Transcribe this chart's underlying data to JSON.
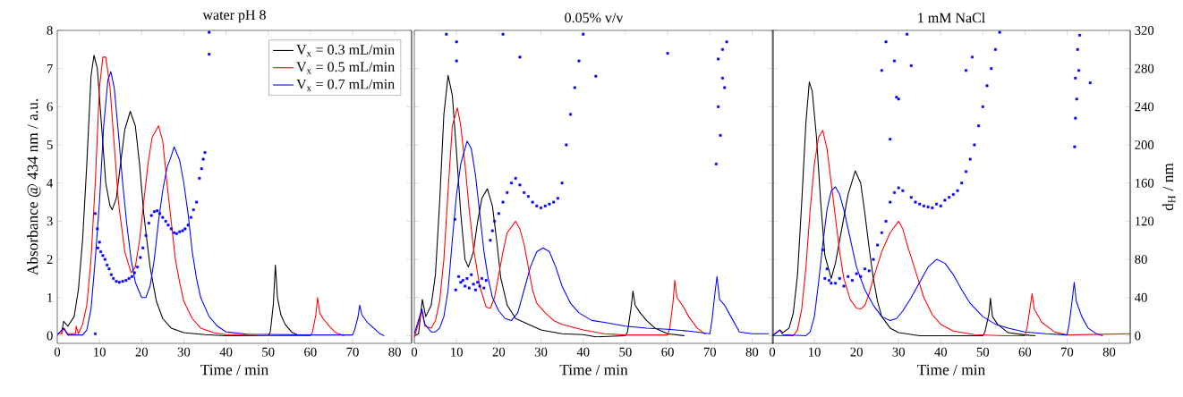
{
  "chart_data": [
    {
      "type": "line",
      "title": "water pH 8",
      "xlabel": "Time / min",
      "ylabel": "Absorbance @ 434 nm / a.u.",
      "xlim": [
        0,
        84
      ],
      "ylim": [
        -0.2,
        8
      ],
      "y2lim": [
        -8,
        320
      ],
      "xticks": [
        0,
        10,
        20,
        30,
        40,
        50,
        60,
        70,
        80
      ],
      "yticks": [
        0,
        1,
        2,
        3,
        4,
        5,
        6,
        7,
        8
      ],
      "legend": "top right",
      "series": [
        {
          "name": "V$_{x}$ = 0.3 mL/min",
          "color": "#000000",
          "x": [
            1,
            1.5,
            2.5,
            4,
            5,
            6,
            7,
            8,
            8.7,
            9.5,
            10.5,
            11.5,
            12.5,
            13,
            14,
            15,
            16,
            17.3,
            18.5,
            19.5,
            20.5,
            22,
            23.5,
            25,
            27,
            30,
            35,
            40,
            45,
            50,
            50.5,
            51.2,
            51.7,
            52.2,
            53,
            54,
            55.5,
            57
          ],
          "values": [
            0.05,
            0.38,
            0.25,
            0.5,
            1.2,
            2.5,
            4.5,
            6.8,
            7.35,
            7.0,
            5.5,
            4.0,
            3.4,
            3.3,
            3.6,
            4.5,
            5.4,
            5.88,
            5.5,
            4.5,
            3.2,
            1.8,
            0.9,
            0.45,
            0.2,
            0.08,
            0.03,
            0,
            0,
            0,
            0.1,
            0.8,
            1.85,
            1.0,
            0.55,
            0.3,
            0.1,
            0.02
          ]
        },
        {
          "name": "V$_{x}$ = 0.5 mL/min",
          "color": "#ff0000",
          "x": [
            0,
            1,
            1.5,
            2.5,
            4.3,
            4.5,
            5,
            6,
            7,
            8,
            9,
            10,
            10.8,
            11.5,
            12.5,
            13.5,
            14.5,
            16,
            17.5,
            18.5,
            19.5,
            20.5,
            21.5,
            22.5,
            24,
            25,
            26,
            27,
            28,
            29,
            30,
            32,
            34,
            37,
            40,
            50,
            60,
            60.5,
            61.3,
            61.7,
            62.2,
            63,
            64.5,
            66,
            68
          ],
          "values": [
            0.05,
            0.05,
            0.2,
            0.05,
            0.05,
            0.25,
            0.05,
            0.3,
            0.8,
            2.0,
            4.0,
            6.5,
            7.3,
            7.3,
            6.5,
            5.0,
            3.5,
            2.2,
            1.65,
            1.8,
            2.5,
            3.5,
            4.5,
            5.2,
            5.5,
            5.1,
            4.0,
            3.0,
            2.0,
            1.4,
            0.9,
            0.45,
            0.2,
            0.08,
            0.03,
            0,
            0,
            0.1,
            0.55,
            1.0,
            0.6,
            0.45,
            0.25,
            0.08,
            0
          ]
        },
        {
          "name": "V$_{x}$ = 0.7 mL/min",
          "color": "#0000ff",
          "x": [
            0,
            1.5,
            2.5,
            6,
            7,
            8,
            9,
            10,
            11,
            12,
            12.7,
            13.5,
            14.5,
            15.5,
            16.5,
            17.5,
            18.5,
            20,
            21,
            22,
            23,
            24,
            25,
            26,
            27,
            27.7,
            29,
            30,
            31,
            32,
            33,
            34,
            36,
            38,
            40,
            45,
            60,
            70,
            70.5,
            71.3,
            71.7,
            72.2,
            73.5,
            75,
            76.5,
            77.5
          ],
          "values": [
            0.02,
            0.2,
            0.02,
            0.02,
            0.15,
            0.7,
            2.0,
            3.5,
            5.5,
            6.7,
            6.92,
            6.5,
            5.3,
            4.0,
            2.9,
            2.0,
            1.4,
            1.0,
            1.0,
            1.3,
            2.0,
            3.0,
            3.8,
            4.4,
            4.7,
            4.95,
            4.6,
            4.0,
            3.2,
            2.2,
            1.5,
            1.0,
            0.5,
            0.25,
            0.1,
            0.04,
            0.02,
            0.02,
            0.15,
            0.5,
            0.8,
            0.55,
            0.35,
            0.2,
            0.05,
            0
          ]
        },
        {
          "type": "scatter",
          "axis": "y2",
          "marker": "square",
          "color": "#0000ff",
          "x": [
            9,
            9,
            9.5,
            9.6,
            10,
            10.3,
            10.8,
            11.3,
            11.8,
            12.3,
            12.8,
            13.3,
            14,
            14.7,
            15.5,
            16.3,
            17,
            17.7,
            18.3,
            19,
            19.7,
            20.3,
            21,
            21.7,
            22.3,
            23,
            23.7,
            24.3,
            25,
            25.7,
            26.3,
            27,
            27.7,
            28.3,
            29,
            29.7,
            30.3,
            31,
            31.7,
            32.3,
            33,
            33.7,
            34.2,
            34.6,
            35,
            36,
            36
          ],
          "values": [
            128,
            2,
            112,
            92,
            98,
            88,
            84,
            80,
            74,
            70,
            64,
            60,
            57,
            56,
            57,
            58,
            60,
            62,
            66,
            72,
            82,
            92,
            105,
            118,
            126,
            130,
            131,
            128,
            124,
            120,
            116,
            112,
            108,
            107,
            109,
            110,
            112,
            116,
            124,
            132,
            140,
            165,
            175,
            185,
            192,
            295,
            318
          ]
        }
      ]
    },
    {
      "type": "line",
      "title": "0.05% v/v",
      "xlabel": "Time / min",
      "xlim": [
        0,
        85
      ],
      "ylim": [
        -0.2,
        8
      ],
      "y2lim": [
        -8,
        320
      ],
      "xticks": [
        0,
        10,
        20,
        30,
        40,
        50,
        60,
        70,
        80
      ],
      "series": [
        {
          "color": "#000000",
          "x": [
            0,
            1,
            1.9,
            2.7,
            4,
            5,
            6,
            7,
            8,
            9,
            10,
            11,
            12,
            12.8,
            14,
            15,
            16,
            17.3,
            18.5,
            19.5,
            20.5,
            22,
            24,
            26,
            28,
            30,
            35,
            40,
            43,
            50,
            50.5,
            51.3,
            51.8,
            52.3,
            53.5,
            55,
            57,
            60,
            64
          ],
          "values": [
            0,
            0.05,
            0.95,
            0.5,
            0.8,
            1.6,
            3.5,
            5.8,
            6.82,
            6.3,
            4.8,
            3.2,
            2.0,
            1.8,
            2.2,
            3.0,
            3.6,
            3.85,
            3.4,
            2.5,
            1.5,
            0.8,
            0.45,
            0.35,
            0.25,
            0.15,
            0.05,
            0.03,
            -0.03,
            0,
            0.1,
            0.7,
            1.17,
            0.8,
            0.6,
            0.4,
            0.2,
            0.05,
            0
          ]
        },
        {
          "color": "#ff0000",
          "x": [
            0,
            1.8,
            2.5,
            4,
            5,
            6,
            7,
            8,
            9,
            10.2,
            11,
            12,
            13,
            14,
            15.5,
            17,
            18,
            19,
            20,
            21,
            22,
            24,
            25,
            26,
            27,
            28,
            29,
            31,
            33,
            35,
            40,
            45,
            50,
            60,
            60.5,
            61.3,
            61.7,
            62.2,
            63.5,
            65,
            67,
            69
          ],
          "values": [
            -0.05,
            0.65,
            0.25,
            0.2,
            0.4,
            0.9,
            2.0,
            3.8,
            5.5,
            5.97,
            5.5,
            4.5,
            3.3,
            2.3,
            1.3,
            0.75,
            0.72,
            1.0,
            1.6,
            2.2,
            2.7,
            3.0,
            2.8,
            2.4,
            1.8,
            1.2,
            0.85,
            0.6,
            0.4,
            0.3,
            0.15,
            0.05,
            0.02,
            0.02,
            0.2,
            0.9,
            1.45,
            1.0,
            0.8,
            0.5,
            0.2,
            0.03
          ]
        },
        {
          "color": "#0000ff",
          "x": [
            0,
            1.8,
            2.5,
            4,
            5,
            6,
            7,
            8,
            9,
            10,
            11,
            12.5,
            13.5,
            14.5,
            15.5,
            16.5,
            17.5,
            18.5,
            20,
            21.5,
            23,
            24.5,
            26,
            27.5,
            29,
            30.5,
            32,
            33.5,
            35,
            37,
            39,
            42,
            45,
            50,
            55,
            60,
            65,
            70,
            70.5,
            71.3,
            71.7,
            72.3,
            73.5,
            75,
            77,
            80,
            84
          ],
          "values": [
            0.05,
            0.7,
            0.3,
            0.1,
            0.1,
            0.2,
            0.5,
            1.2,
            2.5,
            3.7,
            4.5,
            5.1,
            4.9,
            4.2,
            3.2,
            2.2,
            1.5,
            1.0,
            0.65,
            0.45,
            0.4,
            0.6,
            1.2,
            1.8,
            2.2,
            2.3,
            2.2,
            1.8,
            1.3,
            0.85,
            0.6,
            0.4,
            0.35,
            0.25,
            0.2,
            0.17,
            0.12,
            0.05,
            0.4,
            1.2,
            1.55,
            0.95,
            0.8,
            0.5,
            0.1,
            0.05,
            0.05
          ]
        },
        {
          "type": "scatter",
          "axis": "y2",
          "marker": "square",
          "color": "#0000ff",
          "x": [
            7.6,
            9.6,
            9.8,
            10,
            10,
            10.5,
            11,
            11.5,
            12,
            12.5,
            13,
            13.5,
            14,
            14.5,
            15,
            15.5,
            16,
            16.5,
            17,
            18,
            18.5,
            19,
            20,
            21,
            21,
            22,
            23,
            24,
            25,
            25,
            26,
            27,
            28,
            29,
            30,
            31,
            32,
            33,
            34,
            35,
            36,
            37,
            38,
            39,
            40,
            43,
            60,
            71.5,
            72,
            72,
            72.5,
            73,
            73,
            73.5,
            74
          ],
          "values": [
            316,
            122,
            48,
            308,
            288,
            62,
            56,
            58,
            52,
            60,
            50,
            64,
            54,
            48,
            56,
            52,
            60,
            50,
            58,
            100,
            110,
            120,
            128,
            140,
            316,
            150,
            160,
            165,
            158,
            292,
            150,
            146,
            140,
            136,
            134,
            136,
            138,
            140,
            144,
            160,
            200,
            232,
            260,
            288,
            316,
            272,
            296,
            180,
            240,
            290,
            210,
            270,
            300,
            260,
            308
          ]
        }
      ]
    },
    {
      "type": "line",
      "title": "1 mM NaCl",
      "xlabel": "Time / min",
      "y2label": "d$_{H}$ / nm",
      "xlim": [
        0,
        85
      ],
      "ylim": [
        -0.2,
        8
      ],
      "y2lim": [
        -8,
        320
      ],
      "xticks": [
        0,
        10,
        20,
        30,
        40,
        50,
        60,
        70,
        80
      ],
      "y2ticks": [
        0,
        40,
        80,
        120,
        160,
        200,
        240,
        280,
        320
      ],
      "series": [
        {
          "color": "#000000",
          "x": [
            0,
            1.8,
            2.5,
            4,
            5,
            6,
            7,
            8,
            8.8,
            9.5,
            10.5,
            11.5,
            12.5,
            14,
            15,
            16.5,
            18,
            19.7,
            21,
            22,
            23,
            24,
            25,
            26,
            28,
            30,
            35,
            40,
            50,
            50.5,
            51.5,
            51.8,
            52.3,
            53.5,
            56,
            60,
            62.5
          ],
          "values": [
            0,
            0.15,
            0.08,
            0.2,
            0.6,
            1.6,
            3.5,
            5.6,
            6.65,
            6.4,
            5.2,
            3.5,
            2.1,
            1.5,
            1.9,
            2.8,
            3.7,
            4.32,
            4.0,
            3.2,
            2.3,
            1.5,
            0.9,
            0.5,
            0.2,
            0.08,
            0,
            0,
            0,
            0.1,
            0.6,
            0.98,
            0.5,
            0.3,
            0.08,
            0.02,
            0
          ]
        },
        {
          "color": "#ff0000",
          "x": [
            0,
            5,
            6,
            7,
            8,
            9,
            10,
            11,
            12,
            13,
            14,
            15,
            16,
            17,
            18.5,
            20,
            21,
            22,
            23,
            24,
            26,
            28,
            30,
            31,
            32,
            34,
            36,
            38,
            40,
            43,
            48,
            55,
            60,
            60.5,
            61.3,
            61.7,
            62.2,
            64,
            67,
            70,
            85
          ],
          "values": [
            0,
            0,
            0.15,
            0.7,
            1.8,
            3.3,
            4.5,
            5.2,
            5.38,
            4.9,
            4.0,
            3.1,
            2.2,
            1.5,
            0.95,
            0.72,
            0.7,
            0.8,
            1.1,
            1.5,
            2.2,
            2.7,
            3.0,
            2.8,
            2.4,
            1.7,
            1.0,
            0.55,
            0.3,
            0.12,
            0.03,
            0,
            0,
            0.2,
            0.8,
            1.1,
            0.7,
            0.35,
            0.1,
            0.02,
            0.05
          ]
        },
        {
          "color": "#0000ff",
          "x": [
            0,
            1.8,
            2.5,
            8,
            9,
            10,
            11,
            12,
            13,
            14,
            15,
            16,
            17,
            18,
            19,
            20,
            22,
            24,
            26,
            28,
            29.5,
            31,
            33,
            35,
            37,
            39,
            41,
            43,
            45,
            47,
            50,
            53,
            56,
            60,
            65,
            70,
            70.5,
            71.3,
            71.7,
            72.2,
            73.5,
            75,
            77,
            78.5
          ],
          "values": [
            0,
            0.15,
            0.03,
            0,
            0.1,
            0.5,
            1.4,
            2.4,
            3.3,
            3.8,
            3.9,
            3.7,
            3.3,
            2.8,
            2.3,
            1.8,
            1.2,
            0.8,
            0.5,
            0.4,
            0.45,
            0.65,
            1.0,
            1.4,
            1.8,
            2.0,
            1.9,
            1.6,
            1.2,
            0.85,
            0.5,
            0.3,
            0.2,
            0.1,
            0.05,
            0.02,
            0.3,
            1.0,
            1.4,
            0.9,
            0.5,
            0.2,
            0.05,
            0
          ]
        },
        {
          "type": "scatter",
          "axis": "y2",
          "marker": "square",
          "color": "#0000ff",
          "x": [
            12,
            12.5,
            13,
            13.5,
            14,
            15,
            16,
            17,
            18,
            19,
            20,
            21,
            22,
            23,
            24,
            25,
            26,
            26,
            27,
            27,
            28,
            28,
            29,
            29,
            29.5,
            30,
            30,
            31,
            32,
            33,
            33,
            34,
            35,
            36,
            37,
            38,
            39,
            40,
            41,
            42,
            43,
            44,
            45,
            46,
            46,
            47,
            47.5,
            48,
            49,
            50,
            51,
            52,
            53,
            54,
            71.8,
            72,
            72,
            72.3,
            72.5,
            72.8,
            73,
            75.5
          ],
          "values": [
            90,
            60,
            70,
            58,
            55,
            55,
            60,
            52,
            62,
            58,
            65,
            62,
            70,
            68,
            80,
            95,
            108,
            278,
            120,
            308,
            140,
            206,
            150,
            288,
            250,
            155,
            248,
            152,
            316,
            145,
            283,
            140,
            138,
            136,
            135,
            134,
            138,
            136,
            142,
            145,
            148,
            152,
            160,
            172,
            278,
            185,
            292,
            200,
            220,
            240,
            262,
            280,
            300,
            318,
            198,
            228,
            270,
            248,
            300,
            278,
            315,
            265
          ]
        }
      ]
    }
  ]
}
